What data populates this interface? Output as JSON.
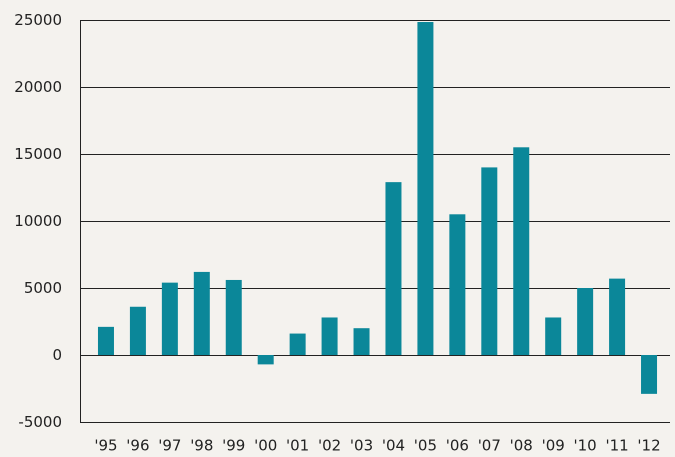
{
  "chart_data": {
    "type": "bar",
    "categories": [
      "'95",
      "'96",
      "'97",
      "'98",
      "'99",
      "'00",
      "'01",
      "'02",
      "'03",
      "'04",
      "'05",
      "'06",
      "'07",
      "'08",
      "'09",
      "'10",
      "'11",
      "'12"
    ],
    "values": [
      2100,
      3600,
      5400,
      6200,
      5600,
      -700,
      1600,
      2800,
      2000,
      12900,
      24850,
      10500,
      14000,
      15500,
      2800,
      5000,
      5700,
      -2900
    ],
    "color": "#0b8799",
    "ylim": [
      -5000,
      25000
    ],
    "yticks": [
      -5000,
      0,
      5000,
      10000,
      15000,
      20000,
      25000
    ],
    "grid": true
  }
}
